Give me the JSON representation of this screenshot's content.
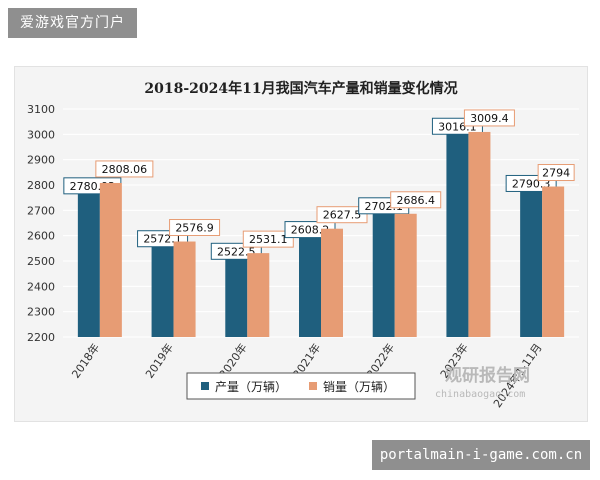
{
  "site": {
    "title": "爱游戏官方门户",
    "url": "portalmain-i-game.com.cn"
  },
  "watermark": {
    "name_cn": "观研报告网",
    "url": "chinabaogao.com"
  },
  "colors": {
    "production": "#1f5f7e",
    "sales": "#e79c74",
    "grid": "#ffffff",
    "panel": "#f4f4f4"
  },
  "chart_data": {
    "type": "bar",
    "title": "2018-2024年11月我国汽车产量和销量变化情况",
    "categories": [
      "2018年",
      "2019年",
      "2020年",
      "2021年",
      "2022年",
      "2023年",
      "2024年1-11月"
    ],
    "series": [
      {
        "name": "产量（万辆）",
        "values": [
          2780.92,
          2572.1,
          2522.5,
          2608.2,
          2702.1,
          3016.1,
          2790.3
        ],
        "labels": [
          "2780.92",
          "2572.1",
          "2522.5",
          "2608.2",
          "2702.1",
          "3016.1",
          "2790.3"
        ]
      },
      {
        "name": "销量（万辆）",
        "values": [
          2808.06,
          2576.9,
          2531.1,
          2627.5,
          2686.4,
          3009.4,
          2794
        ],
        "labels": [
          "2808.06",
          "2576.9",
          "2531.1",
          "2627.5",
          "2686.4",
          "3009.4",
          "2794"
        ]
      }
    ],
    "ylim": [
      2200,
      3100
    ],
    "yticks": [
      "2200",
      "2300",
      "2400",
      "2500",
      "2600",
      "2700",
      "2800",
      "2900",
      "3000",
      "3100"
    ],
    "grid": true,
    "legend_position": "bottom-center"
  }
}
